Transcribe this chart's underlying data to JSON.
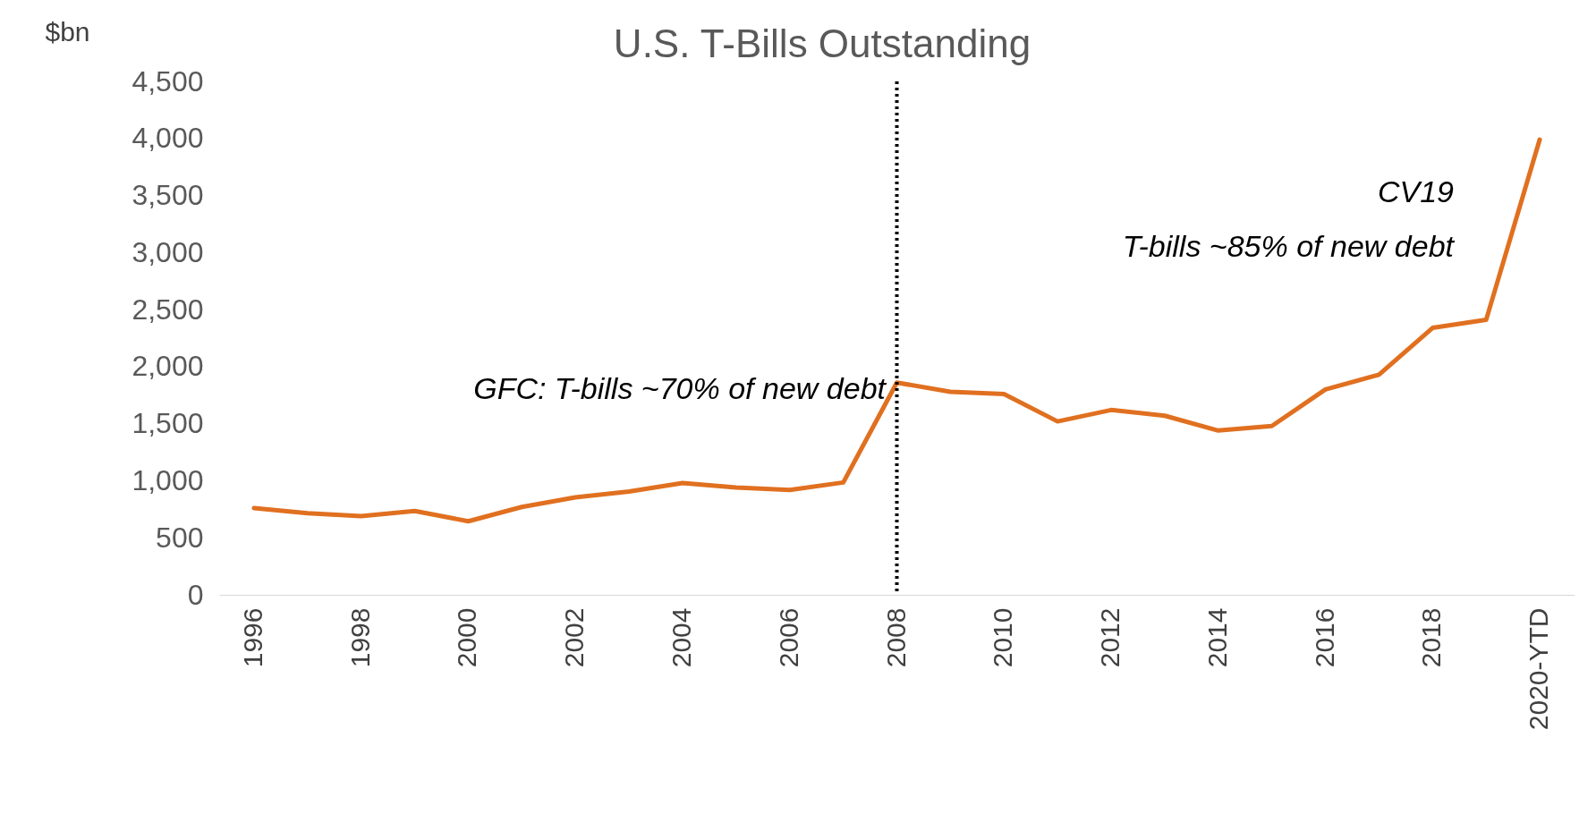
{
  "chart_data": {
    "type": "line",
    "title": "U.S. T-Bills Outstanding",
    "ylabel": "$bn",
    "categories": [
      "1996",
      null,
      "1998",
      null,
      "2000",
      null,
      "2002",
      null,
      "2004",
      null,
      "2006",
      null,
      "2008",
      null,
      "2010",
      null,
      "2012",
      null,
      "2014",
      null,
      "2016",
      null,
      "2018",
      null,
      "2020-YTD"
    ],
    "series": [
      {
        "color": "#e07020",
        "values": [
          760,
          715,
          690,
          735,
          645,
          770,
          855,
          905,
          980,
          940,
          920,
          985,
          1860,
          1780,
          1760,
          1520,
          1620,
          1570,
          1440,
          1480,
          1800,
          1930,
          2340,
          2410,
          3990
        ]
      }
    ],
    "ylim": [
      0,
      4500
    ],
    "yticks": [
      {
        "value": 0,
        "label": "0"
      },
      {
        "value": 500,
        "label": "500"
      },
      {
        "value": 1000,
        "label": "1,000"
      },
      {
        "value": 1500,
        "label": "1,500"
      },
      {
        "value": 2000,
        "label": "2,000"
      },
      {
        "value": 2500,
        "label": "2,500"
      },
      {
        "value": 3000,
        "label": "3,000"
      },
      {
        "value": 3500,
        "label": "3,500"
      },
      {
        "value": 4000,
        "label": "4,000"
      },
      {
        "value": 4500,
        "label": "4,500"
      }
    ],
    "grid": false,
    "marker": "none",
    "line_style": "solid",
    "ref_lines": [
      {
        "axis": "x",
        "value": "2008",
        "color": "#000000",
        "line_style": "dotted"
      }
    ],
    "annotations": [
      "GFC: T-bills ~70% of new debt",
      "CV19",
      "T-bills ~85% of new debt"
    ]
  }
}
